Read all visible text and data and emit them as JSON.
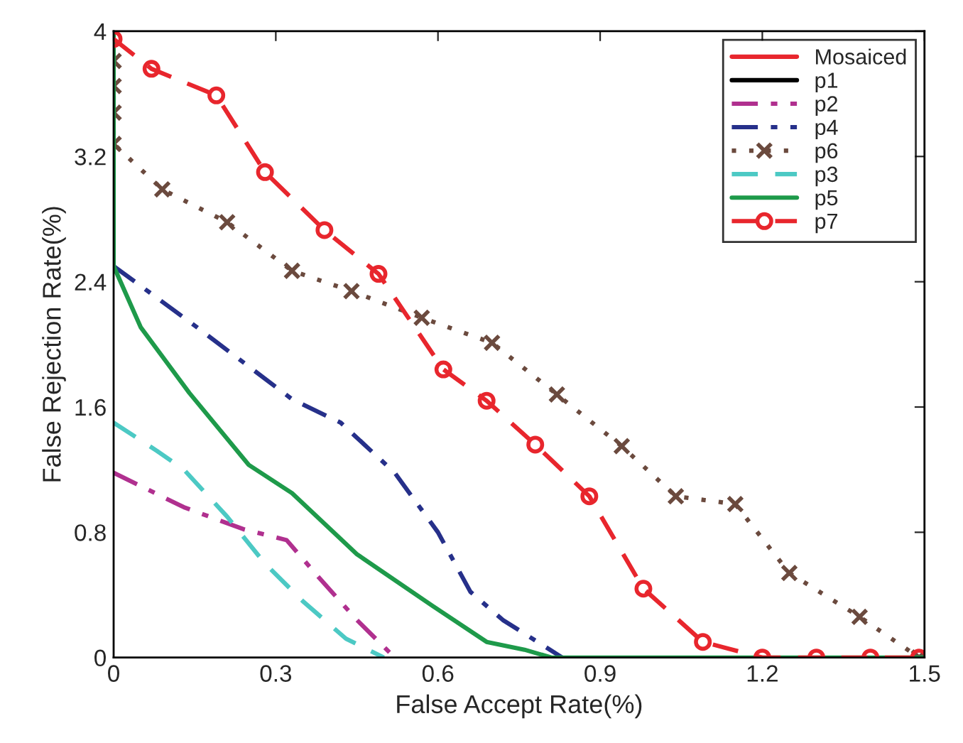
{
  "chart_data": {
    "type": "line",
    "xlabel": "False Accept Rate(%)",
    "ylabel": "False Rejection Rate(%)",
    "xlim": [
      0,
      1.5
    ],
    "xticks": [
      0,
      0.3,
      0.6,
      0.9,
      1.2,
      1.5
    ],
    "ylim": [
      0,
      4
    ],
    "yticks": [
      0,
      0.8,
      1.6,
      2.4,
      3.2,
      4
    ],
    "grid": false,
    "legend": "top right",
    "series": [
      {
        "name": "Mosaiced",
        "color": "#e8262d",
        "line_style": "solid",
        "marker": "none"
      },
      {
        "name": "p1",
        "color": "#000000",
        "line_style": "solid",
        "marker": "none"
      },
      {
        "name": "p2",
        "color": "#b0308f",
        "line_style": "dashdot",
        "marker": "none",
        "x": [
          0,
          0.13,
          0.24,
          0.32,
          0.38,
          0.45,
          0.52
        ],
        "values": [
          1.18,
          0.96,
          0.82,
          0.75,
          0.51,
          0.24,
          0
        ]
      },
      {
        "name": "p4",
        "color": "#26308a",
        "line_style": "dashdot",
        "marker": "none",
        "x": [
          0,
          0.15,
          0.33,
          0.42,
          0.52,
          0.6,
          0.66,
          0.72,
          0.83
        ],
        "values": [
          2.5,
          2.12,
          1.65,
          1.5,
          1.18,
          0.8,
          0.42,
          0.24,
          0
        ]
      },
      {
        "name": "p6",
        "color": "#6b4a3e",
        "line_style": "dotted",
        "marker": "cross",
        "x": [
          0,
          0,
          0,
          0,
          0.09,
          0.21,
          0.33,
          0.44,
          0.57,
          0.7,
          0.82,
          0.94,
          1.04,
          1.15,
          1.25,
          1.38,
          1.49
        ],
        "values": [
          3.81,
          3.65,
          3.48,
          3.28,
          2.99,
          2.78,
          2.47,
          2.34,
          2.17,
          2.01,
          1.68,
          1.35,
          1.03,
          0.98,
          0.54,
          0.26,
          0
        ]
      },
      {
        "name": "p3",
        "color": "#4cc9c4",
        "line_style": "dashed",
        "marker": "none",
        "x": [
          0,
          0.08,
          0.13,
          0.21,
          0.28,
          0.35,
          0.43,
          0.5
        ],
        "values": [
          1.5,
          1.32,
          1.2,
          0.9,
          0.6,
          0.36,
          0.12,
          0
        ]
      },
      {
        "name": "p5",
        "color": "#1e9a4a",
        "line_style": "solid",
        "marker": "none",
        "x": [
          0,
          0,
          0.05,
          0.14,
          0.25,
          0.33,
          0.45,
          0.59,
          0.69,
          0.76,
          0.81,
          1.5
        ],
        "values": [
          4,
          2.5,
          2.11,
          1.69,
          1.23,
          1.05,
          0.66,
          0.33,
          0.1,
          0.05,
          0,
          0
        ]
      },
      {
        "name": "p7",
        "color": "#e8262d",
        "line_style": "dashed",
        "marker": "circle",
        "x": [
          0,
          0.07,
          0.19,
          0.28,
          0.39,
          0.49,
          0.61,
          0.69,
          0.78,
          0.88,
          0.98,
          1.09,
          1.2,
          1.3,
          1.4,
          1.49
        ],
        "values": [
          3.95,
          3.76,
          3.59,
          3.1,
          2.73,
          2.45,
          1.84,
          1.64,
          1.36,
          1.03,
          0.44,
          0.1,
          0,
          0,
          0,
          0
        ]
      }
    ]
  }
}
